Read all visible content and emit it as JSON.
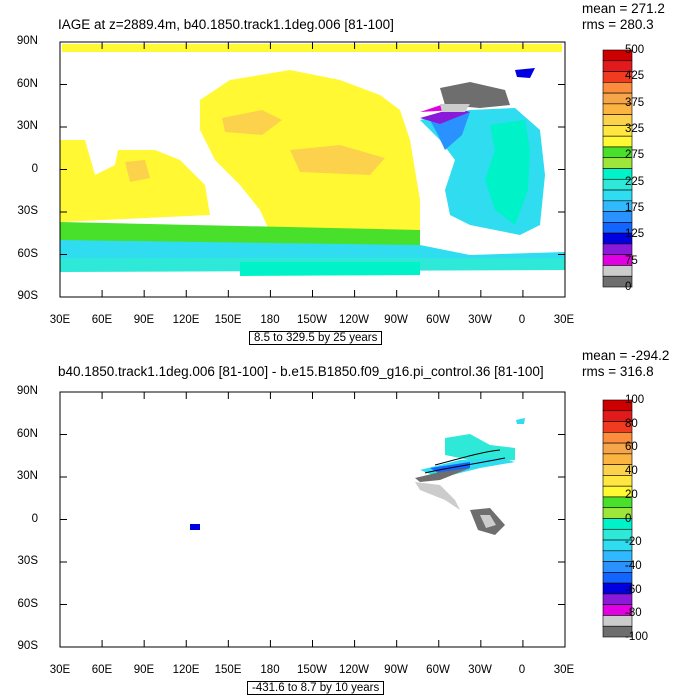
{
  "chart_data": [
    {
      "type": "heatmap",
      "title": "IAGE at z=2889.4m, b40.1850.track1.1deg.006 [81-100]",
      "stats": {
        "mean_label": "mean = 271.2",
        "rms_label": "rms = 280.3"
      },
      "lat_ticks": [
        "90N",
        "60N",
        "30N",
        "0",
        "30S",
        "60S",
        "90S"
      ],
      "lon_ticks": [
        "30E",
        "60E",
        "90E",
        "120E",
        "150E",
        "180",
        "150W",
        "120W",
        "90W",
        "60W",
        "30W",
        "0",
        "30E"
      ],
      "colorbar": {
        "labels": [
          "500",
          "425",
          "375",
          "325",
          "275",
          "225",
          "175",
          "125",
          "75",
          "0"
        ],
        "colors": [
          "#cc0000",
          "#e31a1c",
          "#f03b20",
          "#fd8d3c",
          "#f7a54a",
          "#fbb442",
          "#fcd24c",
          "#ffe640",
          "#fff833",
          "#48e02a",
          "#9ee63a",
          "#00f2c8",
          "#2ee8d8",
          "#30dcf0",
          "#31b9ff",
          "#2a92ff",
          "#1266ff",
          "#0000e0",
          "#8a1ad9",
          "#e100e1",
          "#cccccc",
          "#6e6e6e"
        ]
      },
      "range_label": "8.5 to 329.5 by 25 years",
      "units": "years"
    },
    {
      "type": "heatmap",
      "title": "b40.1850.track1.1deg.006 [81-100] - b.e15.B1850.f09_g16.pi_control.36 [81-100]",
      "stats": {
        "mean_label": "mean = -294.2",
        "rms_label": "rms = 316.8"
      },
      "lat_ticks": [
        "90N",
        "60N",
        "30N",
        "0",
        "30S",
        "60S",
        "90S"
      ],
      "lon_ticks": [
        "30E",
        "60E",
        "90E",
        "120E",
        "150E",
        "180",
        "150W",
        "120W",
        "90W",
        "60W",
        "30W",
        "0",
        "30E"
      ],
      "colorbar": {
        "labels": [
          "100",
          "80",
          "60",
          "40",
          "20",
          "0",
          "-20",
          "-40",
          "-60",
          "-80",
          "-100"
        ],
        "colors": [
          "#cc0000",
          "#e31a1c",
          "#f03b20",
          "#fd8d3c",
          "#f7a54a",
          "#fbb442",
          "#fcd24c",
          "#ffe640",
          "#fff833",
          "#48e02a",
          "#9ee63a",
          "#00f2c8",
          "#2ee8d8",
          "#30dcf0",
          "#31b9ff",
          "#2a92ff",
          "#1266ff",
          "#0000e0",
          "#8a1ad9",
          "#e100e1",
          "#cccccc",
          "#6e6e6e"
        ]
      },
      "range_label": "-431.6 to 8.7 by 10 years",
      "units": "years"
    }
  ]
}
